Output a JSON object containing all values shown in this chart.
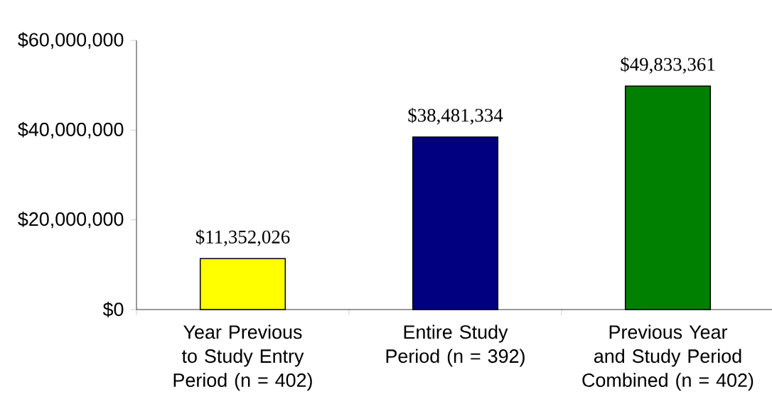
{
  "chart_data": {
    "type": "bar",
    "categories": [
      "Year Previous to Study Entry Period (n = 402)",
      "Entire Study Period (n = 392)",
      "Previous Year and Study Period Combined (n = 402)"
    ],
    "values": [
      11352026,
      38481334,
      49833361
    ],
    "colors": [
      "#ffff00",
      "#000080",
      "#008000"
    ],
    "value_labels": [
      "$11,352,026",
      "$38,481,334",
      "$49,833,361"
    ],
    "ylim": [
      0,
      60000000
    ],
    "yticks": [
      {
        "value": 0,
        "label": "$0"
      },
      {
        "value": 20000000,
        "label": "$20,000,000"
      },
      {
        "value": 40000000,
        "label": "$40,000,000"
      },
      {
        "value": 60000000,
        "label": "$60,000,000"
      }
    ],
    "grid": false
  }
}
